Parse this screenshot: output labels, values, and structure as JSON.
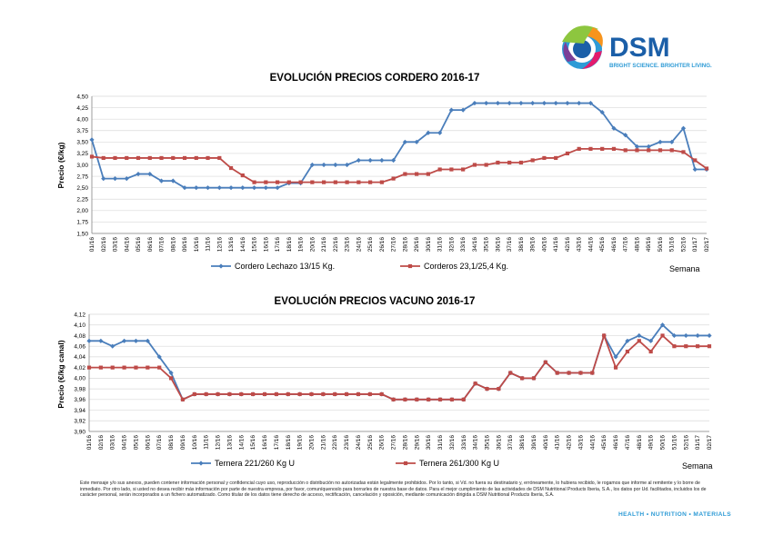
{
  "logo": {
    "wordmark": "DSM",
    "tagline": "BRIGHT SCIENCE. BRIGHTER LIVING."
  },
  "footer_tagline": "HEALTH • NUTRITION • MATERIALS",
  "disclaimer": "Este mensaje y/o sus anexos, pueden contener información personal y confidencial cuyo uso, reproducción o distribución no autorizadas están legalmente prohibidos. Por lo tanto, si Vd. no fuera su destinatario y, erróneamente, lo hubiera recibido, le rogamos que informe al remitente y lo borre de inmediato. Por otro lado, si usted no desea recibir más información por parte de nuestra empresa, por favor, comuníquenoslo para borrarles de nuestra base de datos. Para el mejor cumplimiento de las actividades de DSM Nutritional Products Iberia, S.A., los datos por Ud. facilitados, incluidos los de carácter personal, serán incorporados a un fichero automatizado. Como titular de los datos tiene derecho de acceso, rectificación, cancelación y oposición, mediante comunicación dirigida a DSM Nutritional Products Iberia, S.A.",
  "colors": {
    "blue": "#4a7ebb",
    "red": "#be4b48",
    "grid": "#d9d9d9",
    "axis": "#868686",
    "tagline": "#2e9bd6"
  },
  "chart_data": [
    {
      "type": "line",
      "title": "EVOLUCIÓN PRECIOS CORDERO 2016-17",
      "ylabel": "Precio (€/kg)",
      "xlabel": "Semana",
      "ylim": [
        1.5,
        4.5
      ],
      "ystep": 0.25,
      "ydecimals": 2,
      "grid": true,
      "legend_position": "bottom",
      "categories": [
        "01/16",
        "02/16",
        "03/16",
        "04/16",
        "05/16",
        "06/16",
        "07/16",
        "08/16",
        "09/16",
        "10/16",
        "11/16",
        "12/16",
        "13/16",
        "14/16",
        "15/16",
        "16/16",
        "17/16",
        "18/16",
        "19/16",
        "20/16",
        "21/16",
        "22/16",
        "23/16",
        "24/16",
        "25/16",
        "26/16",
        "27/16",
        "28/16",
        "29/16",
        "30/16",
        "31/16",
        "32/16",
        "33/16",
        "34/16",
        "35/16",
        "36/16",
        "37/16",
        "38/16",
        "39/16",
        "40/16",
        "41/16",
        "42/16",
        "43/16",
        "44/16",
        "45/16",
        "46/16",
        "47/16",
        "48/16",
        "49/16",
        "50/16",
        "51/16",
        "52/16",
        "01/17",
        "02/17"
      ],
      "series": [
        {
          "name": "Cordero Lechazo 13/15 Kg.",
          "color": "#4a7ebb",
          "marker": "diamond",
          "values": [
            3.55,
            2.7,
            2.7,
            2.7,
            2.8,
            2.8,
            2.65,
            2.65,
            2.5,
            2.5,
            2.5,
            2.5,
            2.5,
            2.5,
            2.5,
            2.5,
            2.5,
            2.6,
            2.6,
            3.0,
            3.0,
            3.0,
            3.0,
            3.1,
            3.1,
            3.1,
            3.1,
            3.5,
            3.5,
            3.7,
            3.7,
            4.2,
            4.2,
            4.35,
            4.35,
            4.35,
            4.35,
            4.35,
            4.35,
            4.35,
            4.35,
            4.35,
            4.35,
            4.35,
            4.15,
            3.8,
            3.65,
            3.4,
            3.4,
            3.5,
            3.5,
            3.8,
            2.9,
            2.9
          ]
        },
        {
          "name": "Corderos 23,1/25,4 Kg.",
          "color": "#be4b48",
          "marker": "square",
          "values": [
            3.18,
            3.15,
            3.15,
            3.15,
            3.15,
            3.15,
            3.15,
            3.15,
            3.15,
            3.15,
            3.15,
            3.15,
            2.93,
            2.77,
            2.62,
            2.62,
            2.62,
            2.62,
            2.62,
            2.62,
            2.62,
            2.62,
            2.62,
            2.62,
            2.62,
            2.62,
            2.7,
            2.8,
            2.8,
            2.8,
            2.9,
            2.9,
            2.9,
            3.0,
            3.0,
            3.05,
            3.05,
            3.05,
            3.1,
            3.15,
            3.15,
            3.25,
            3.35,
            3.35,
            3.35,
            3.35,
            3.32,
            3.32,
            3.32,
            3.32,
            3.32,
            3.28,
            3.1,
            2.92
          ]
        }
      ]
    },
    {
      "type": "line",
      "title": "EVOLUCIÓN PRECIOS VACUNO 2016-17",
      "ylabel": "Precio (€/kg canal)",
      "xlabel": "Semana",
      "ylim": [
        3.9,
        4.12
      ],
      "ystep": 0.02,
      "ydecimals": 2,
      "grid": true,
      "legend_position": "bottom",
      "categories": [
        "01/16",
        "02/16",
        "03/16",
        "04/16",
        "05/16",
        "06/16",
        "07/16",
        "08/16",
        "09/16",
        "10/16",
        "11/16",
        "12/16",
        "13/16",
        "14/16",
        "15/16",
        "16/16",
        "17/16",
        "18/16",
        "19/16",
        "20/16",
        "21/16",
        "22/16",
        "23/16",
        "24/16",
        "25/16",
        "26/16",
        "27/16",
        "28/16",
        "29/16",
        "30/16",
        "31/16",
        "32/16",
        "33/16",
        "34/16",
        "35/16",
        "36/16",
        "37/16",
        "38/16",
        "39/16",
        "40/16",
        "41/16",
        "42/16",
        "43/16",
        "44/16",
        "45/16",
        "46/16",
        "47/16",
        "48/16",
        "49/16",
        "50/16",
        "51/16",
        "52/16",
        "01/17",
        "02/17"
      ],
      "series": [
        {
          "name": "Ternera 221/260 Kg U",
          "color": "#4a7ebb",
          "marker": "diamond",
          "values": [
            4.07,
            4.07,
            4.06,
            4.07,
            4.07,
            4.07,
            4.04,
            4.01,
            3.96,
            3.97,
            3.97,
            3.97,
            3.97,
            3.97,
            3.97,
            3.97,
            3.97,
            3.97,
            3.97,
            3.97,
            3.97,
            3.97,
            3.97,
            3.97,
            3.97,
            3.97,
            3.96,
            3.96,
            3.96,
            3.96,
            3.96,
            3.96,
            3.96,
            3.99,
            3.98,
            3.98,
            4.01,
            4.0,
            4.0,
            4.03,
            4.01,
            4.01,
            4.01,
            4.01,
            4.08,
            4.04,
            4.07,
            4.08,
            4.07,
            4.1,
            4.08,
            4.08,
            4.08,
            4.08
          ]
        },
        {
          "name": "Ternera 261/300 Kg U",
          "color": "#be4b48",
          "marker": "square",
          "values": [
            4.02,
            4.02,
            4.02,
            4.02,
            4.02,
            4.02,
            4.02,
            4.0,
            3.96,
            3.97,
            3.97,
            3.97,
            3.97,
            3.97,
            3.97,
            3.97,
            3.97,
            3.97,
            3.97,
            3.97,
            3.97,
            3.97,
            3.97,
            3.97,
            3.97,
            3.97,
            3.96,
            3.96,
            3.96,
            3.96,
            3.96,
            3.96,
            3.96,
            3.99,
            3.98,
            3.98,
            4.01,
            4.0,
            4.0,
            4.03,
            4.01,
            4.01,
            4.01,
            4.01,
            4.08,
            4.02,
            4.05,
            4.07,
            4.05,
            4.08,
            4.06,
            4.06,
            4.06,
            4.06
          ]
        }
      ]
    }
  ]
}
